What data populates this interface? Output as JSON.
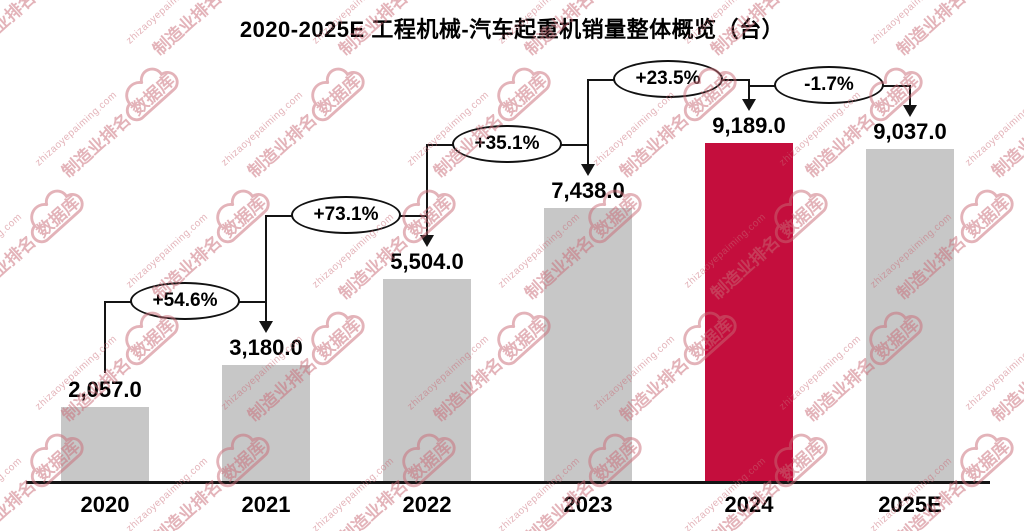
{
  "chart_data": {
    "type": "bar",
    "title": "2020-2025E 工程机械-汽车起重机销量整体概览（台）",
    "categories": [
      "2020",
      "2021",
      "2022",
      "2023",
      "2024",
      "2025E"
    ],
    "values": [
      2057.0,
      3180.0,
      5504.0,
      7438.0,
      9189.0,
      9037.0
    ],
    "value_labels": [
      "2,057.0",
      "3,180.0",
      "5,504.0",
      "7,438.0",
      "9,189.0",
      "9,037.0"
    ],
    "growth_annotations": [
      {
        "from": "2020",
        "to": "2021",
        "label": "+54.6%"
      },
      {
        "from": "2021",
        "to": "2022",
        "label": "+73.1%"
      },
      {
        "from": "2022",
        "to": "2023",
        "label": "+35.1%"
      },
      {
        "from": "2023",
        "to": "2024",
        "label": "+23.5%"
      },
      {
        "from": "2024",
        "to": "2025E",
        "label": "-1.7%"
      }
    ],
    "xlabel": "",
    "ylabel": "",
    "ylim": [
      0,
      9600
    ],
    "grid": false,
    "legend": false,
    "bar_color": "#C7C7C7",
    "highlight_color": "#C40E3D",
    "highlight_category": "2024",
    "axis_color": "#141414"
  },
  "watermark": {
    "domain_text": "zhizaoyepaiming.com",
    "cn_prefix": "制造业排名",
    "cn_suffix": "数据库",
    "color": "#C96A76"
  }
}
